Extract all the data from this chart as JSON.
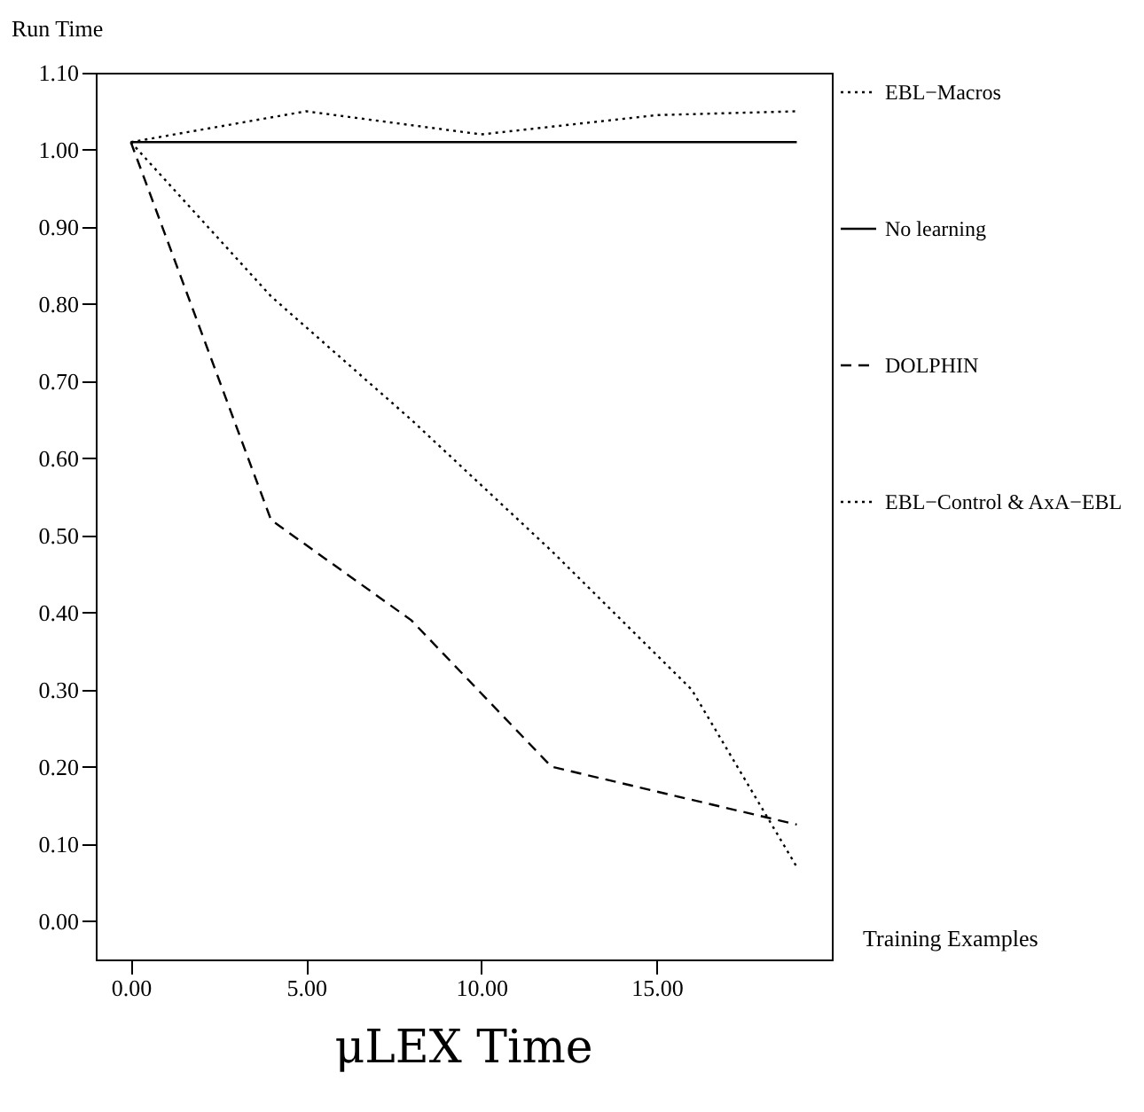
{
  "chart_data": {
    "type": "line",
    "title": "μLEX Time",
    "xlabel": "Training Examples",
    "ylabel": "Run Time",
    "xlim": [
      -1,
      20
    ],
    "xticks": [
      {
        "value": 0,
        "label": "0.00"
      },
      {
        "value": 5,
        "label": "5.00"
      },
      {
        "value": 10,
        "label": "10.00"
      },
      {
        "value": 15,
        "label": "15.00"
      }
    ],
    "ylim": [
      -0.05,
      1.1
    ],
    "yticks": [
      {
        "value": 0,
        "label": "0.00"
      },
      {
        "value": 0.1,
        "label": "0.10"
      },
      {
        "value": 0.2,
        "label": "0.20"
      },
      {
        "value": 0.3,
        "label": "0.30"
      },
      {
        "value": 0.4,
        "label": "0.40"
      },
      {
        "value": 0.5,
        "label": "0.50"
      },
      {
        "value": 0.6,
        "label": "0.60"
      },
      {
        "value": 0.7,
        "label": "0.70"
      },
      {
        "value": 0.8,
        "label": "0.80"
      },
      {
        "value": 0.9,
        "label": "0.90"
      },
      {
        "value": 1.0,
        "label": "1.00"
      },
      {
        "value": 1.1,
        "label": "1.10"
      }
    ],
    "grid": false,
    "legend": "right",
    "series": [
      {
        "name": "EBL−Macros",
        "color": "#000000",
        "line_style": "dotted",
        "x": [
          0,
          5,
          10,
          15,
          19
        ],
        "values": [
          1.01,
          1.05,
          1.02,
          1.045,
          1.05
        ]
      },
      {
        "name": "No learning",
        "color": "#000000",
        "line_style": "solid",
        "x": [
          0,
          19
        ],
        "values": [
          1.01,
          1.01
        ]
      },
      {
        "name": "DOLPHIN",
        "color": "#000000",
        "line_style": "dashed",
        "x": [
          0,
          4,
          8,
          12,
          19
        ],
        "values": [
          1.01,
          0.52,
          0.39,
          0.2,
          0.125
        ]
      },
      {
        "name": "EBL−Control & AxA−EBL",
        "color": "#000000",
        "line_style": "dotted",
        "x": [
          0,
          4,
          8,
          12,
          16,
          19
        ],
        "values": [
          1.01,
          0.81,
          0.65,
          0.48,
          0.3,
          0.07
        ]
      }
    ]
  }
}
